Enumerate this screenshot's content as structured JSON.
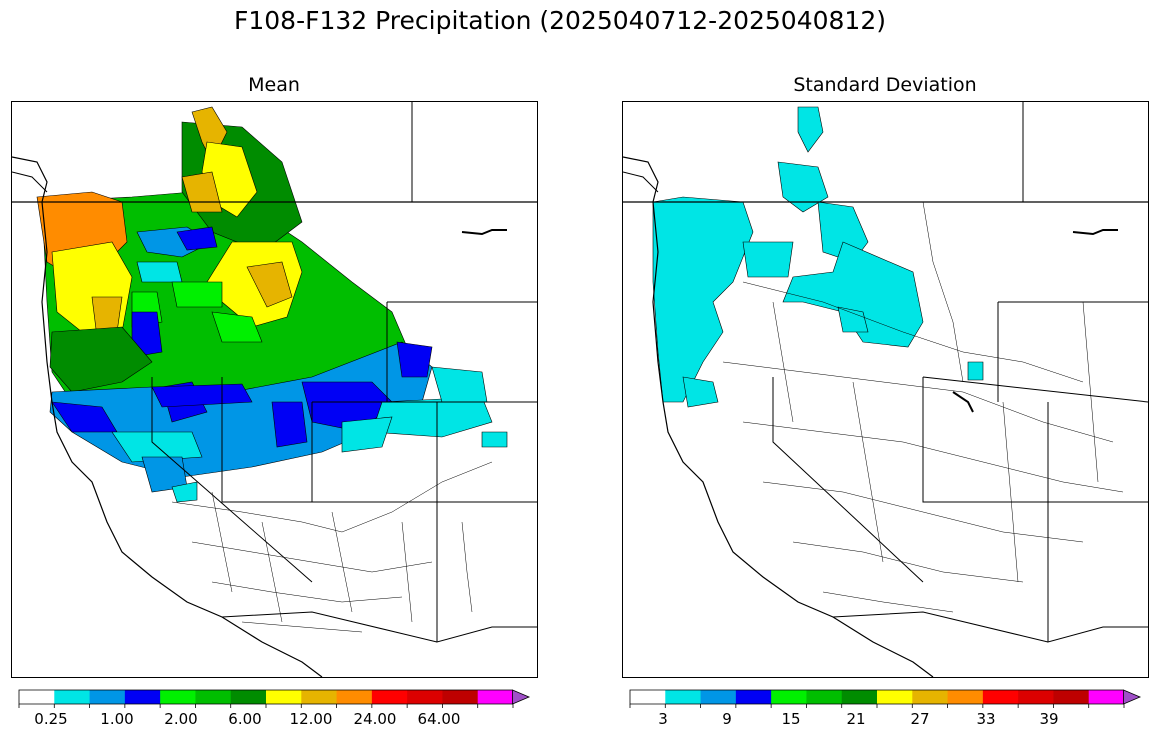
{
  "title": "F108-F132 Precipitation (2025040712-2025040812)",
  "panels": [
    {
      "title": "Mean",
      "colorbar": {
        "colors": [
          "#ffffff",
          "#00e5e5",
          "#0096e6",
          "#0000f5",
          "#00f000",
          "#00be00",
          "#008c00",
          "#ffff00",
          "#e6b400",
          "#ff8c00",
          "#ff0000",
          "#dc0000",
          "#be0000",
          "#ff00ff",
          "#a050c8"
        ],
        "tick_labels": [
          "0.25",
          "1.00",
          "2.00",
          "6.00",
          "12.00",
          "24.00",
          "64.00"
        ],
        "extend": "max"
      }
    },
    {
      "title": "Standard Deviation",
      "colorbar": {
        "colors": [
          "#ffffff",
          "#00e5e5",
          "#0096e6",
          "#0000f5",
          "#00f000",
          "#00be00",
          "#008c00",
          "#ffff00",
          "#e6b400",
          "#ff8c00",
          "#ff0000",
          "#dc0000",
          "#be0000",
          "#ff00ff",
          "#a050c8"
        ],
        "tick_labels": [
          "3",
          "9",
          "15",
          "21",
          "27",
          "33",
          "39"
        ],
        "extend": "max"
      }
    }
  ]
}
